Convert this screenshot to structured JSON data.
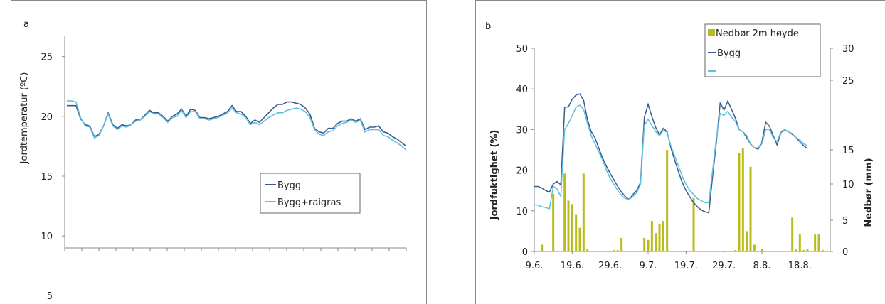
{
  "chart_data": [
    {
      "type": "line",
      "panel_label": "a",
      "ylabel": "Jordtemperatur (ºC)",
      "ylim": [
        5,
        25
      ],
      "yticks": [
        "25",
        "20",
        "15",
        "10",
        "5"
      ],
      "ytick_values": [
        25,
        20,
        15,
        10,
        5
      ],
      "x_count": 75,
      "legend": [
        "Bygg",
        "Bygg+raigras"
      ],
      "series": [
        {
          "name": "Bygg",
          "color": "#3b5b8c",
          "values": [
            20.9,
            20.9,
            20.9,
            19.8,
            19.3,
            19.2,
            18.3,
            18.5,
            19.2,
            20.3,
            19.3,
            19.0,
            19.3,
            19.2,
            19.3,
            19.7,
            19.7,
            20.1,
            20.5,
            20.3,
            20.3,
            20.0,
            19.6,
            20.0,
            20.2,
            20.6,
            20.0,
            20.6,
            20.5,
            19.9,
            19.9,
            19.8,
            19.9,
            20.0,
            20.2,
            20.4,
            20.9,
            20.4,
            20.4,
            20.0,
            19.4,
            19.7,
            19.5,
            19.9,
            20.3,
            20.7,
            21.0,
            21.0,
            21.2,
            21.2,
            21.1,
            21.0,
            20.7,
            20.2,
            19.0,
            18.7,
            18.6,
            19.0,
            19.0,
            19.4,
            19.6,
            19.6,
            19.8,
            19.6,
            19.8,
            18.9,
            19.1,
            19.1,
            19.2,
            18.7,
            18.6,
            18.3,
            18.1,
            17.8,
            17.5
          ]
        },
        {
          "name": "Bygg+raigras",
          "color": "#5ec0dc",
          "values": [
            21.3,
            21.3,
            21.2,
            19.9,
            19.2,
            19.1,
            18.2,
            18.4,
            19.2,
            20.2,
            19.2,
            18.9,
            19.2,
            19.1,
            19.3,
            19.6,
            19.7,
            20.0,
            20.4,
            20.2,
            20.2,
            19.9,
            19.5,
            19.9,
            20.0,
            20.5,
            19.9,
            20.4,
            20.4,
            19.8,
            19.8,
            19.7,
            19.8,
            19.9,
            20.1,
            20.3,
            20.7,
            20.3,
            20.2,
            19.9,
            19.3,
            19.5,
            19.3,
            19.6,
            19.9,
            20.1,
            20.3,
            20.3,
            20.5,
            20.6,
            20.7,
            20.6,
            20.4,
            19.9,
            18.9,
            18.5,
            18.4,
            18.7,
            18.8,
            19.2,
            19.4,
            19.5,
            19.7,
            19.5,
            19.7,
            18.7,
            18.9,
            18.9,
            18.9,
            18.4,
            18.3,
            18.0,
            17.8,
            17.5,
            17.2
          ]
        }
      ]
    },
    {
      "type": "line",
      "panel_label": "b",
      "ylabel": "Jordfuktighet (%)",
      "y2label": "Nedbør (mm)",
      "ylim": [
        0,
        50
      ],
      "y2lim": [
        0,
        30
      ],
      "yticks": [
        "0",
        "10",
        "20",
        "30",
        "40",
        "50"
      ],
      "ytick_values": [
        0,
        10,
        20,
        30,
        40,
        50
      ],
      "y2ticks": [
        "0",
        "5",
        "10",
        "15",
        "25",
        "30"
      ],
      "y2tick_values": [
        0,
        5,
        10,
        15,
        25,
        30
      ],
      "x_count": 79,
      "xticks": [
        "9.6.",
        "19.6.",
        "29.6.",
        "9.7.",
        "19.7.",
        "29.7.",
        "8.8.",
        "18.8."
      ],
      "xtick_index": [
        0,
        10,
        20,
        30,
        40,
        50,
        60,
        70
      ],
      "legend": [
        "Nedbør 2m høyde",
        "Bygg",
        ""
      ],
      "bar_series": {
        "name": "Nedbør 2m høyde",
        "color": "#b8bc1b",
        "values": [
          0,
          0,
          1,
          0,
          0,
          8.5,
          0,
          0,
          11.5,
          7.5,
          7,
          5.5,
          3.5,
          11.5,
          0.3,
          0,
          0,
          0,
          0,
          0,
          0,
          0.2,
          0.2,
          2,
          0,
          0,
          0,
          0,
          0,
          2,
          1.7,
          4.5,
          2.7,
          4,
          4.5,
          15,
          0,
          0,
          0,
          0,
          0,
          0,
          7.9,
          0,
          0,
          0,
          0,
          0,
          0,
          0,
          0,
          0,
          0,
          0.2,
          14.5,
          15.2,
          3,
          12.5,
          1,
          0,
          0.4,
          0,
          0,
          0,
          0,
          0,
          0,
          0,
          5,
          0.3,
          2.5,
          0.2,
          0.3,
          0,
          2.5,
          2.5,
          0.2,
          0,
          0
        ]
      },
      "series": [
        {
          "name": "Bygg",
          "color": "#3b5b8c",
          "values": [
            16,
            16,
            15.6,
            15,
            14.6,
            16.6,
            17.2,
            16.4,
            35.5,
            35.6,
            37.5,
            38.5,
            38.8,
            37.2,
            32.5,
            29.5,
            28,
            25.4,
            23,
            21,
            19.2,
            17.6,
            16,
            14.6,
            13.5,
            12.8,
            14,
            15,
            17,
            33,
            36.2,
            33.2,
            30.5,
            28.7,
            30.3,
            29.5,
            25.5,
            22.5,
            19.6,
            17,
            15,
            13.4,
            12,
            11,
            10.2,
            9.8,
            9.5,
            18.5,
            27,
            36.5,
            34.8,
            37,
            35,
            32.8,
            30,
            29.5,
            28,
            26.4,
            25.5,
            25.2,
            27,
            31.8,
            30.8,
            28.5,
            26.2,
            29.3,
            29.8,
            29.5,
            28.8,
            28,
            27,
            26,
            25.3
          ]
        },
        {
          "name": "",
          "color": "#5ec0dc",
          "values": [
            11.5,
            11.4,
            11,
            10.8,
            10.5,
            16,
            15.4,
            13.5,
            30,
            31.5,
            33.5,
            35.5,
            36,
            35,
            31.5,
            28.5,
            26.5,
            24.5,
            22.5,
            20,
            18,
            16.5,
            15,
            13.8,
            13,
            12.8,
            13.5,
            14.5,
            16.5,
            31,
            32.5,
            31,
            29.5,
            28.5,
            29.8,
            29.3,
            26,
            23.5,
            21,
            18.5,
            16.5,
            15,
            14,
            13,
            12.5,
            12,
            12,
            20,
            28,
            34,
            33.5,
            34.5,
            33,
            32,
            30,
            29.5,
            28.5,
            26.5,
            25.5,
            25.5,
            26.5,
            30,
            30,
            28,
            27,
            29.5,
            30,
            29.5,
            29,
            28,
            27.5,
            26.5,
            26
          ]
        }
      ]
    }
  ]
}
